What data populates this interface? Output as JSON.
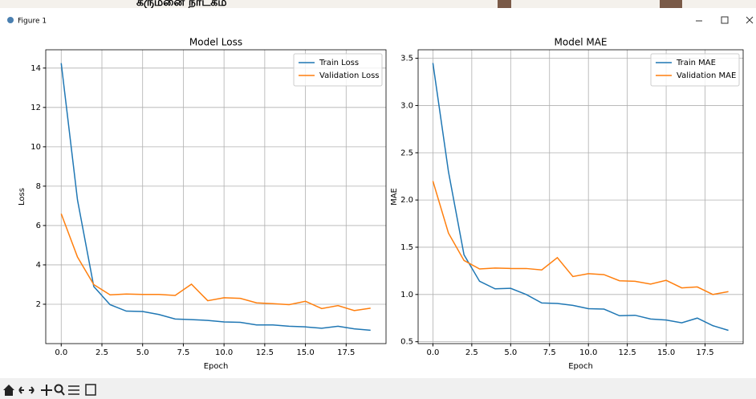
{
  "window": {
    "title": "Figure 1"
  },
  "background_text": "கருமனை நாடகம",
  "chart_data": [
    {
      "type": "line",
      "title": "Model Loss",
      "x_label": "Epoch",
      "y_label": "Loss",
      "x": [
        0,
        1,
        2,
        3,
        4,
        5,
        6,
        7,
        8,
        9,
        10,
        11,
        12,
        13,
        14,
        15,
        16,
        17,
        18,
        19
      ],
      "series": [
        {
          "name": "Train Loss",
          "color": "#1f77b4",
          "values": [
            14.25,
            7.3,
            2.9,
            1.98,
            1.65,
            1.63,
            1.48,
            1.25,
            1.22,
            1.18,
            1.1,
            1.08,
            0.95,
            0.95,
            0.88,
            0.85,
            0.78,
            0.88,
            0.75,
            0.68
          ]
        },
        {
          "name": "Validation Loss",
          "color": "#ff7f0e",
          "values": [
            6.6,
            4.4,
            3.0,
            2.48,
            2.52,
            2.5,
            2.5,
            2.45,
            3.02,
            2.18,
            2.33,
            2.3,
            2.07,
            2.03,
            1.98,
            2.15,
            1.78,
            1.93,
            1.68,
            1.8
          ]
        }
      ],
      "xlim": [
        -0.95,
        19.95
      ],
      "ylim": [
        0,
        14.93
      ],
      "xticks": [
        {
          "value": 0,
          "label": "0.0"
        },
        2.5,
        {
          "value": 5,
          "label": "5.0"
        },
        7.5,
        {
          "value": 10,
          "label": "10.0"
        },
        12.5,
        {
          "value": 15,
          "label": "15.0"
        },
        17.5
      ],
      "yticks": [
        2,
        4,
        6,
        8,
        10,
        12,
        14
      ],
      "grid": true,
      "legend": "upper right"
    },
    {
      "type": "line",
      "title": "Model MAE",
      "x_label": "Epoch",
      "y_label": "MAE",
      "x": [
        0,
        1,
        2,
        3,
        4,
        5,
        6,
        7,
        8,
        9,
        10,
        11,
        12,
        13,
        14,
        15,
        16,
        17,
        18,
        19
      ],
      "series": [
        {
          "name": "Train MAE",
          "color": "#1f77b4",
          "values": [
            3.45,
            2.3,
            1.42,
            1.14,
            1.06,
            1.065,
            1.0,
            0.91,
            0.905,
            0.885,
            0.85,
            0.845,
            0.775,
            0.78,
            0.74,
            0.73,
            0.7,
            0.75,
            0.67,
            0.62
          ]
        },
        {
          "name": "Validation MAE",
          "color": "#ff7f0e",
          "values": [
            2.2,
            1.65,
            1.36,
            1.27,
            1.28,
            1.275,
            1.275,
            1.26,
            1.39,
            1.19,
            1.22,
            1.21,
            1.145,
            1.14,
            1.11,
            1.15,
            1.07,
            1.08,
            1.0,
            1.03
          ]
        }
      ],
      "xlim": [
        -0.95,
        19.95
      ],
      "ylim": [
        0.48,
        3.59
      ],
      "xticks": [
        {
          "value": 0,
          "label": "0.0"
        },
        2.5,
        {
          "value": 5,
          "label": "5.0"
        },
        7.5,
        {
          "value": 10,
          "label": "10.0"
        },
        12.5,
        {
          "value": 15,
          "label": "15.0"
        },
        17.5
      ],
      "yticks": [
        0.5,
        {
          "value": 1,
          "label": "1.0"
        },
        1.5,
        {
          "value": 2,
          "label": "2.0"
        },
        2.5,
        {
          "value": 3,
          "label": "3.0"
        },
        3.5
      ],
      "grid": true,
      "legend": "upper right"
    }
  ]
}
